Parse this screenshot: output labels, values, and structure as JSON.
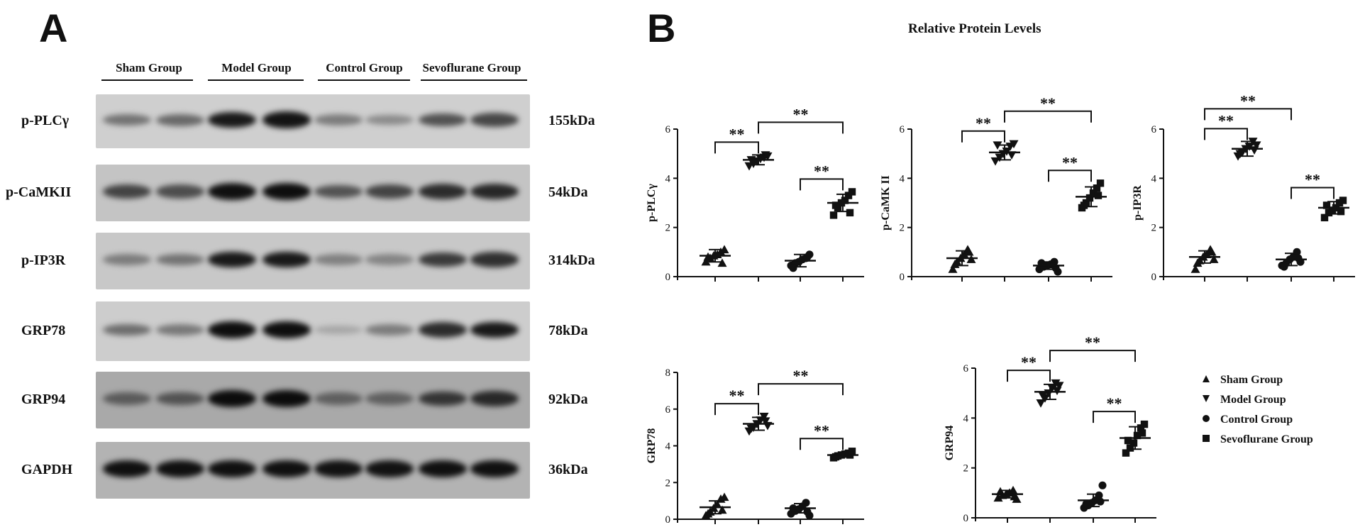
{
  "panel_a": {
    "letter": "A",
    "groups": [
      "Sham Group",
      "Model Group",
      "Control Group",
      "Sevoflurane Group"
    ],
    "blots": [
      {
        "protein": "p-PLCγ",
        "kda": "155kDa",
        "background": "#cfcfcf",
        "intensities": [
          0.45,
          0.5,
          0.92,
          0.95,
          0.4,
          0.32,
          0.62,
          0.68
        ]
      },
      {
        "protein": "p-CaMKII",
        "kda": "54kDa",
        "background": "#c4c4c4",
        "intensities": [
          0.7,
          0.65,
          0.97,
          0.98,
          0.62,
          0.7,
          0.82,
          0.85
        ]
      },
      {
        "protein": "p-IP3R",
        "kda": "314kDa",
        "background": "#c8c8c8",
        "intensities": [
          0.4,
          0.45,
          0.92,
          0.92,
          0.38,
          0.36,
          0.75,
          0.8
        ]
      },
      {
        "protein": "GRP78",
        "kda": "78kDa",
        "background": "#cdcdcd",
        "intensities": [
          0.48,
          0.42,
          0.98,
          0.98,
          0.18,
          0.4,
          0.82,
          0.92
        ]
      },
      {
        "protein": "GRP94",
        "kda": "92kDa",
        "background": "#a9a9a9",
        "intensities": [
          0.58,
          0.62,
          0.99,
          0.99,
          0.55,
          0.55,
          0.78,
          0.84
        ]
      },
      {
        "protein": "GAPDH",
        "kda": "36kDa",
        "background": "#b3b3b3",
        "intensities": [
          0.97,
          0.97,
          0.97,
          0.97,
          0.96,
          0.96,
          0.97,
          0.97
        ]
      }
    ]
  },
  "panel_b": {
    "letter": "B",
    "title": "Relative Protein Levels",
    "significance_mark": "**",
    "legend": [
      {
        "label": "Sham Group",
        "marker": "triangle-up"
      },
      {
        "label": "Model Group",
        "marker": "triangle-down"
      },
      {
        "label": "Control Group",
        "marker": "circle"
      },
      {
        "label": "Sevoflurane Group",
        "marker": "square"
      }
    ]
  },
  "chart_data": [
    {
      "type": "scatter",
      "ylabel": "p-PLCγ",
      "ylim": [
        0,
        6
      ],
      "yticks": [
        0,
        2,
        4,
        6
      ],
      "categories": [
        "Sham Group",
        "Model Group",
        "Control Group",
        "Sevoflurane Group"
      ],
      "means": [
        0.85,
        4.75,
        0.65,
        3.0
      ],
      "sds": [
        0.25,
        0.2,
        0.25,
        0.35
      ],
      "points": [
        [
          0.6,
          0.75,
          0.85,
          0.9,
          1.0,
          1.1,
          0.8,
          0.55
        ],
        [
          4.5,
          4.6,
          4.7,
          4.8,
          4.85,
          4.9,
          4.75,
          4.95
        ],
        [
          0.45,
          0.55,
          0.6,
          0.7,
          0.75,
          0.9,
          0.35,
          0.8
        ],
        [
          2.5,
          2.8,
          3.0,
          3.1,
          3.3,
          3.45,
          2.9,
          2.6
        ]
      ],
      "comparisons": [
        [
          0,
          1,
          "**"
        ],
        [
          1,
          3,
          "**"
        ],
        [
          2,
          3,
          "**"
        ]
      ]
    },
    {
      "type": "scatter",
      "ylabel": "p-CaMK II",
      "ylim": [
        0,
        6
      ],
      "yticks": [
        0,
        2,
        4,
        6
      ],
      "categories": [
        "Sham Group",
        "Model Group",
        "Control Group",
        "Sevoflurane Group"
      ],
      "means": [
        0.75,
        5.05,
        0.45,
        3.25
      ],
      "sds": [
        0.3,
        0.3,
        0.15,
        0.4
      ],
      "points": [
        [
          0.3,
          0.6,
          0.75,
          0.9,
          1.1,
          0.7,
          0.5,
          1.0
        ],
        [
          4.7,
          4.85,
          5.0,
          5.1,
          5.3,
          5.4,
          5.35,
          4.95
        ],
        [
          0.3,
          0.4,
          0.45,
          0.5,
          0.6,
          0.2,
          0.55,
          0.35
        ],
        [
          2.8,
          3.0,
          3.2,
          3.4,
          3.6,
          3.8,
          2.9,
          3.3
        ]
      ],
      "comparisons": [
        [
          0,
          1,
          "**"
        ],
        [
          1,
          3,
          "**"
        ],
        [
          2,
          3,
          "**"
        ]
      ]
    },
    {
      "type": "scatter",
      "ylabel": "p-IP3R",
      "ylim": [
        0,
        6
      ],
      "yticks": [
        0,
        2,
        4,
        6
      ],
      "categories": [
        "Sham Group",
        "Model Group",
        "Control Group",
        "Sevoflurane Group"
      ],
      "means": [
        0.8,
        5.2,
        0.7,
        2.8
      ],
      "sds": [
        0.25,
        0.3,
        0.25,
        0.25
      ],
      "points": [
        [
          0.3,
          0.65,
          0.8,
          0.9,
          1.1,
          0.7,
          0.55,
          1.0
        ],
        [
          4.9,
          5.05,
          5.2,
          5.3,
          5.5,
          5.35,
          5.0,
          5.15
        ],
        [
          0.45,
          0.55,
          0.7,
          0.8,
          1.0,
          0.6,
          0.4,
          0.75
        ],
        [
          2.4,
          2.6,
          2.7,
          2.8,
          3.0,
          3.1,
          2.9,
          2.65
        ]
      ],
      "comparisons": [
        [
          0,
          1,
          "**"
        ],
        [
          0,
          2,
          "**"
        ],
        [
          2,
          3,
          "**"
        ]
      ]
    },
    {
      "type": "scatter",
      "ylabel": "GRP78",
      "ylim": [
        0,
        8
      ],
      "yticks": [
        0,
        2,
        4,
        6,
        8
      ],
      "categories": [
        "Sham Group",
        "Model Group",
        "Control Group",
        "Sevoflurane Group"
      ],
      "means": [
        0.65,
        5.2,
        0.6,
        3.5
      ],
      "sds": [
        0.35,
        0.35,
        0.25,
        0.1
      ],
      "points": [
        [
          0.2,
          0.4,
          0.6,
          0.8,
          1.1,
          1.2,
          0.3,
          0.5
        ],
        [
          4.8,
          5.0,
          5.2,
          5.4,
          5.6,
          5.1,
          4.95,
          5.35
        ],
        [
          0.3,
          0.45,
          0.55,
          0.7,
          0.9,
          0.2,
          0.6,
          0.4
        ],
        [
          3.35,
          3.45,
          3.5,
          3.55,
          3.6,
          3.7,
          3.4,
          3.5
        ]
      ],
      "comparisons": [
        [
          0,
          1,
          "**"
        ],
        [
          1,
          3,
          "**"
        ],
        [
          2,
          3,
          "**"
        ]
      ]
    },
    {
      "type": "scatter",
      "ylabel": "GRP94",
      "ylim": [
        0,
        6
      ],
      "yticks": [
        0,
        2,
        4,
        6
      ],
      "categories": [
        "Sham Group",
        "Model Group",
        "Control Group",
        "Sevoflurane Group"
      ],
      "means": [
        0.95,
        5.05,
        0.7,
        3.2
      ],
      "sds": [
        0.15,
        0.3,
        0.25,
        0.45
      ],
      "points": [
        [
          0.8,
          0.9,
          0.95,
          1.0,
          1.1,
          0.75,
          1.05,
          0.85
        ],
        [
          4.6,
          4.8,
          5.0,
          5.2,
          5.4,
          5.3,
          4.9,
          5.1
        ],
        [
          0.4,
          0.5,
          0.6,
          0.7,
          0.9,
          1.3,
          0.55,
          0.65
        ],
        [
          2.6,
          2.8,
          3.0,
          3.3,
          3.6,
          3.75,
          3.1,
          3.4
        ]
      ],
      "comparisons": [
        [
          0,
          1,
          "**"
        ],
        [
          1,
          3,
          "**"
        ],
        [
          2,
          3,
          "**"
        ]
      ]
    }
  ]
}
